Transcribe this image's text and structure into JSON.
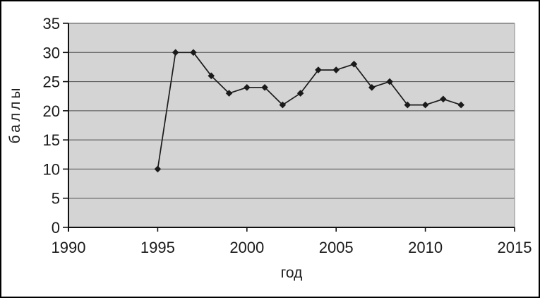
{
  "chart_data": {
    "type": "line",
    "title": "",
    "xlabel": "год",
    "ylabel": "баллы",
    "x": [
      1995,
      1996,
      1997,
      1998,
      1999,
      2000,
      2001,
      2002,
      2003,
      2004,
      2005,
      2006,
      2007,
      2008,
      2009,
      2010,
      2011,
      2012
    ],
    "values": [
      10,
      30,
      30,
      26,
      23,
      24,
      24,
      21,
      23,
      27,
      27,
      28,
      24,
      25,
      21,
      21,
      22,
      21
    ],
    "xlim": [
      1990,
      2015
    ],
    "ylim": [
      0,
      35
    ],
    "x_ticks": [
      1990,
      1995,
      2000,
      2005,
      2010,
      2015
    ],
    "y_ticks": [
      0,
      5,
      10,
      15,
      20,
      25,
      30,
      35
    ],
    "grid": "horizontal",
    "legend": "none",
    "marker": "diamond",
    "colors": {
      "plot_background": "#d4d4d4",
      "gridline": "#4c4c4c",
      "series_line": "#1a1a1a",
      "marker_fill": "#1a1a1a",
      "axis": "#111111",
      "text": "#1a1a1a",
      "frame_border": "#000000",
      "plot_right_edge": "#9a9a9a"
    }
  }
}
